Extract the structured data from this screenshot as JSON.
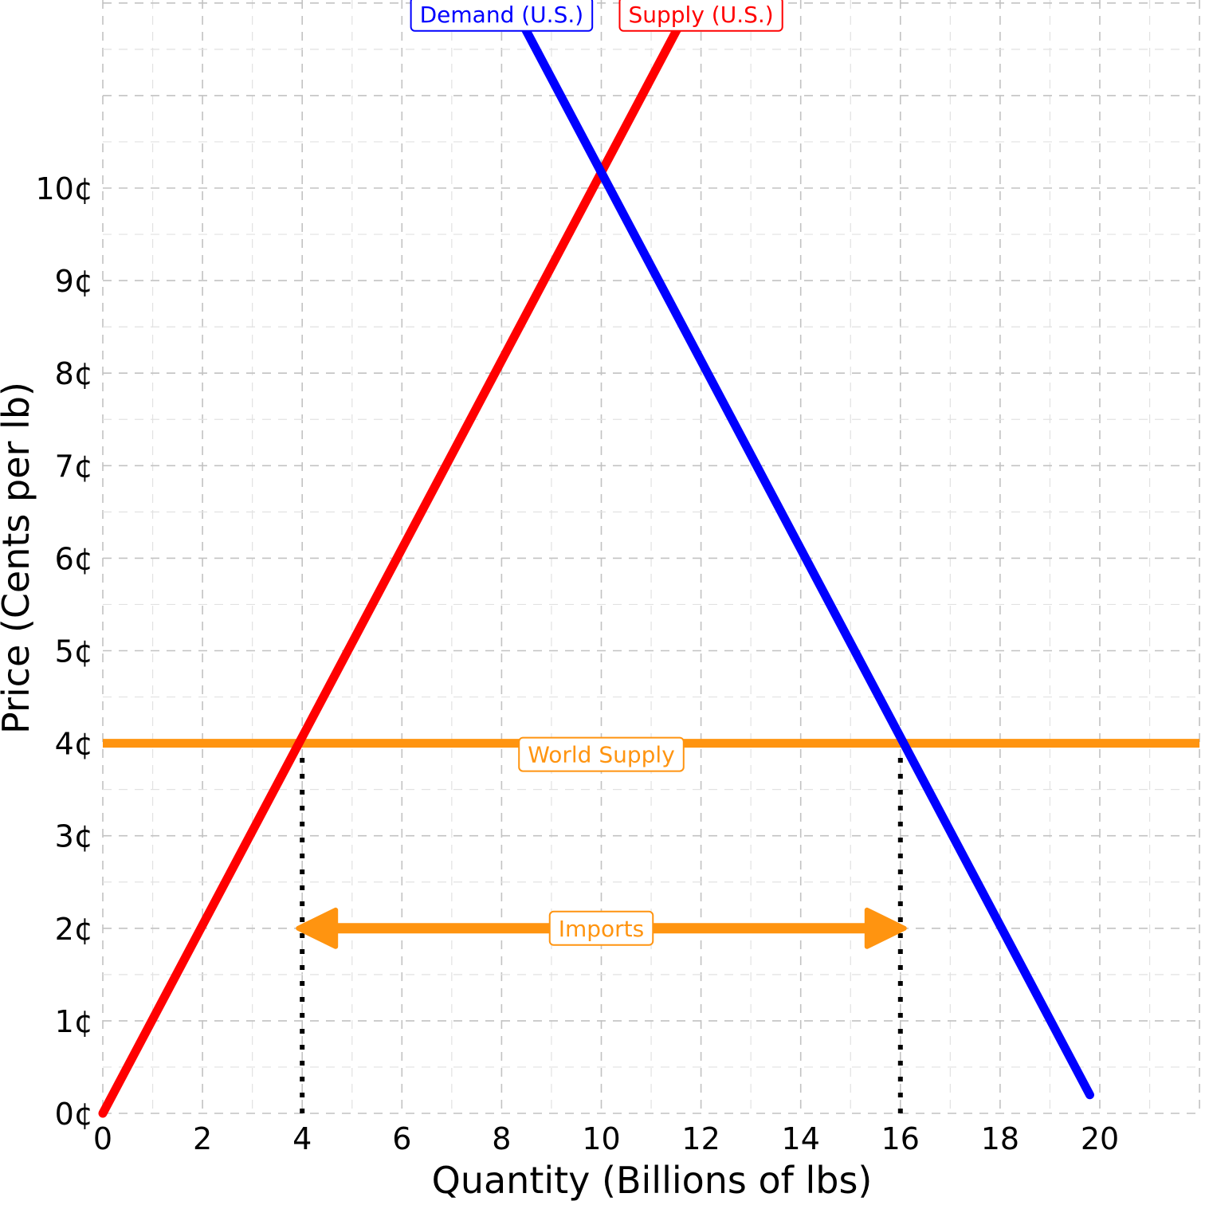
{
  "chart_data": {
    "type": "line",
    "xlabel": "Quantity (Billions of lbs)",
    "ylabel": "Price (Cents per lb)",
    "xlim": [
      0,
      22
    ],
    "ylim": [
      0,
      12
    ],
    "x_ticks": [
      0,
      2,
      4,
      6,
      8,
      10,
      12,
      14,
      16,
      18,
      20
    ],
    "x_tick_labels": [
      "0",
      "2",
      "4",
      "6",
      "8",
      "10",
      "12",
      "14",
      "16",
      "18",
      "20"
    ],
    "y_ticks": [
      0,
      1,
      2,
      3,
      4,
      5,
      6,
      7,
      8,
      9,
      10
    ],
    "y_tick_labels": [
      "0¢",
      "1¢",
      "2¢",
      "3¢",
      "4¢",
      "5¢",
      "6¢",
      "7¢",
      "8¢",
      "9¢",
      "10¢"
    ],
    "grid": true,
    "series": [
      {
        "name": "Demand (U.S.)",
        "color": "#0000ff",
        "x": [
          8.2,
          19.8
        ],
        "y": [
          12.0,
          0.2
        ]
      },
      {
        "name": "Supply (U.S.)",
        "color": "#ff0000",
        "x": [
          0.0,
          11.8
        ],
        "y": [
          0.0,
          12.0
        ]
      },
      {
        "name": "World Supply",
        "color": "#ff9410",
        "x": [
          0.0,
          22.0
        ],
        "y": [
          4.0,
          4.0
        ]
      }
    ],
    "reference_lines": [
      {
        "x": 4,
        "y_from": 0,
        "y_to": 4,
        "style": "dotted",
        "color": "#000000"
      },
      {
        "x": 16,
        "y_from": 0,
        "y_to": 4,
        "style": "dotted",
        "color": "#000000"
      }
    ],
    "annotations": [
      {
        "type": "double-arrow",
        "label": "Imports",
        "x_from": 4,
        "x_to": 16,
        "y": 2,
        "color": "#ff9410"
      }
    ],
    "label_positions": [
      {
        "series": "Demand (U.S.)",
        "x": 8.0,
        "y": 12.0
      },
      {
        "series": "Supply (U.S.)",
        "x": 12.0,
        "y": 12.0
      },
      {
        "series": "World Supply",
        "x": 10.0,
        "y": 4.0
      }
    ]
  }
}
